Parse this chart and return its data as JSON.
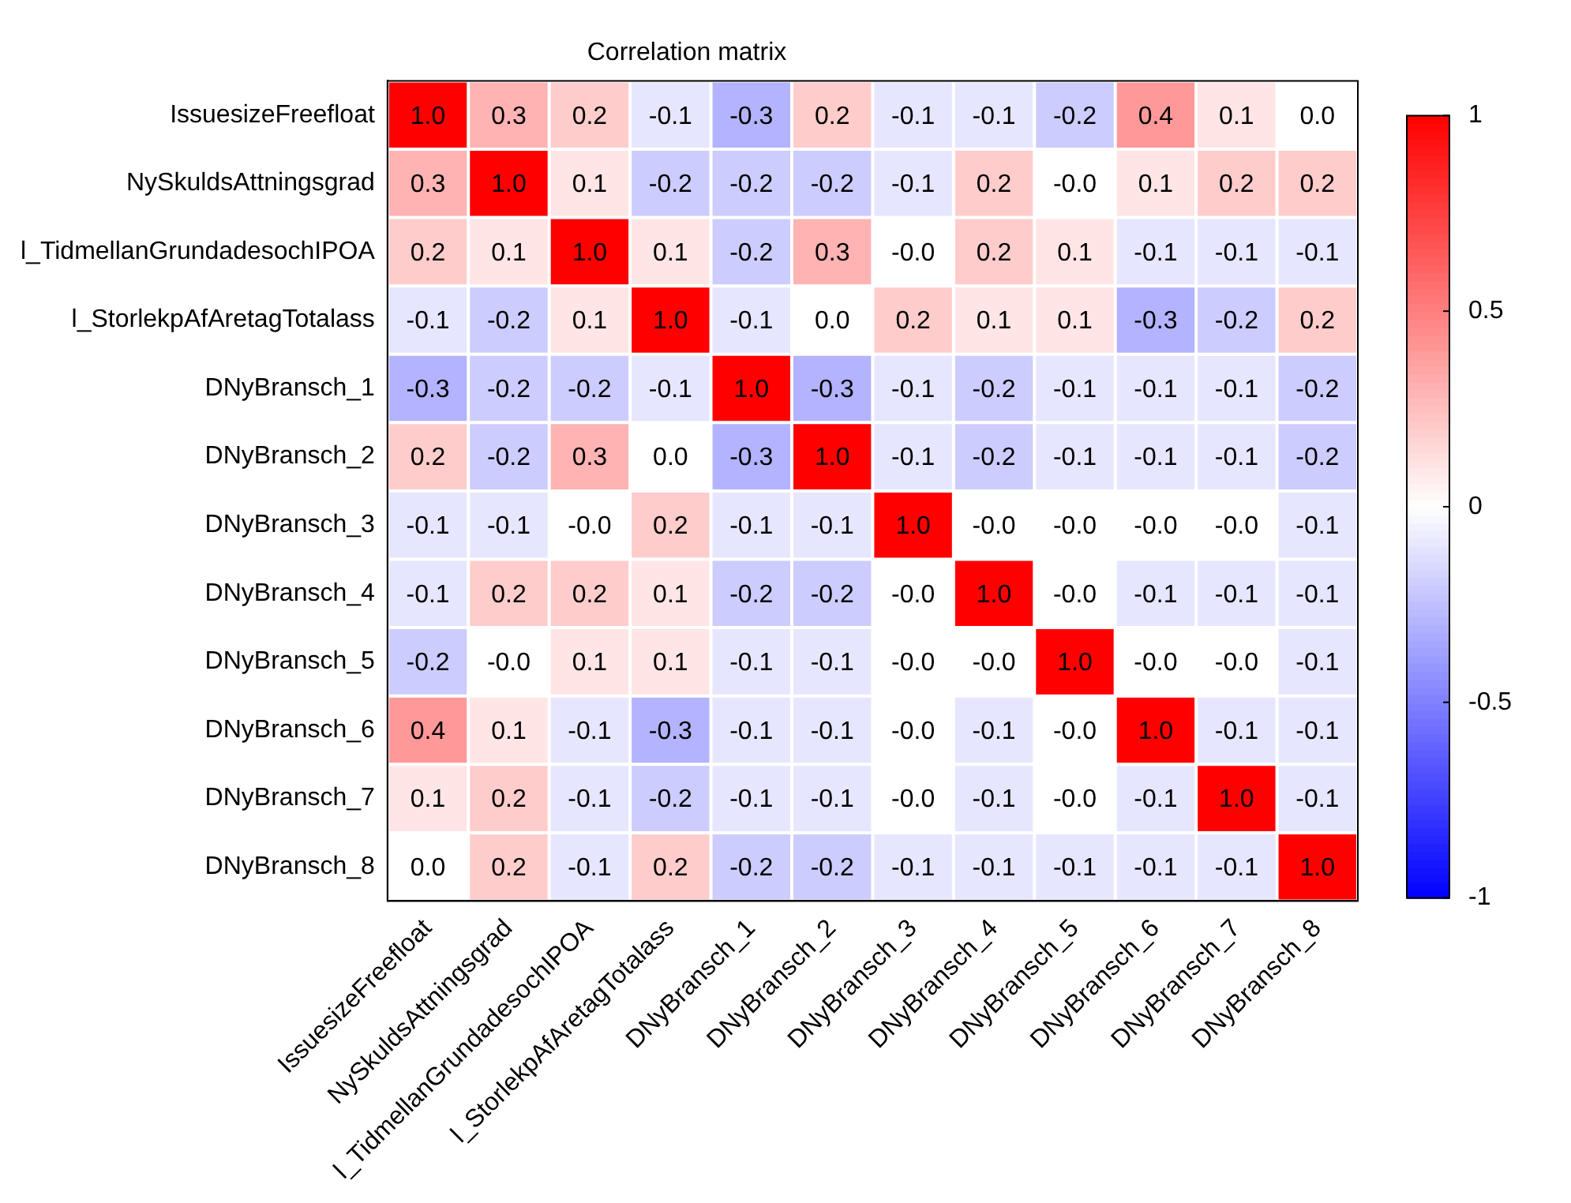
{
  "chart_data": {
    "type": "heatmap",
    "title": "Correlation matrix",
    "categories": [
      "IssuesizeFreefloat",
      "NySkuldsAttningsgrad",
      "l_TidmellanGrundadesochIPOA",
      "l_StorlekpAfAretagTotalass",
      "DNyBransch_1",
      "DNyBransch_2",
      "DNyBransch_3",
      "DNyBransch_4",
      "DNyBransch_5",
      "DNyBransch_6",
      "DNyBransch_7",
      "DNyBransch_8"
    ],
    "y_categories": [
      "IssuesizeFreefloat",
      "NySkuldsAttningsgrad",
      "l_TidmellanGrundadesochIPOA",
      "l_StorlekpAfAretagTotalass",
      "DNyBransch_1",
      "DNyBransch_2",
      "DNyBransch_3",
      "DNyBransch_4",
      "DNyBransch_5",
      "DNyBransch_6",
      "DNyBransch_7",
      "DNyBransch_8"
    ],
    "cells": [
      [
        1.0,
        0.3,
        0.2,
        -0.1,
        -0.3,
        0.2,
        -0.1,
        -0.1,
        -0.2,
        0.4,
        0.1,
        0.0
      ],
      [
        0.3,
        1.0,
        0.1,
        -0.2,
        -0.2,
        -0.2,
        -0.1,
        0.2,
        0.0,
        0.1,
        0.2,
        0.2
      ],
      [
        0.2,
        0.1,
        1.0,
        0.1,
        -0.2,
        0.3,
        0.0,
        0.2,
        0.1,
        -0.1,
        -0.1,
        -0.1
      ],
      [
        -0.1,
        -0.2,
        0.1,
        1.0,
        -0.1,
        0.0,
        0.2,
        0.1,
        0.1,
        -0.3,
        -0.2,
        0.2
      ],
      [
        -0.3,
        -0.2,
        -0.2,
        -0.1,
        1.0,
        -0.3,
        -0.1,
        -0.2,
        -0.1,
        -0.1,
        -0.1,
        -0.2
      ],
      [
        0.2,
        -0.2,
        0.3,
        0.0,
        -0.3,
        1.0,
        -0.1,
        -0.2,
        -0.1,
        -0.1,
        -0.1,
        -0.2
      ],
      [
        -0.1,
        -0.1,
        0.0,
        0.2,
        -0.1,
        -0.1,
        1.0,
        0.0,
        0.0,
        0.0,
        0.0,
        -0.1
      ],
      [
        -0.1,
        0.2,
        0.2,
        0.1,
        -0.2,
        -0.2,
        0.0,
        1.0,
        0.0,
        -0.1,
        -0.1,
        -0.1
      ],
      [
        -0.2,
        0.0,
        0.1,
        0.1,
        -0.1,
        -0.1,
        0.0,
        0.0,
        1.0,
        0.0,
        0.0,
        -0.1
      ],
      [
        0.4,
        0.1,
        -0.1,
        -0.3,
        -0.1,
        -0.1,
        0.0,
        -0.1,
        0.0,
        1.0,
        -0.1,
        -0.1
      ],
      [
        0.1,
        0.2,
        -0.1,
        -0.2,
        -0.1,
        -0.1,
        0.0,
        -0.1,
        0.0,
        -0.1,
        1.0,
        -0.1
      ],
      [
        0.0,
        0.2,
        -0.1,
        0.2,
        -0.2,
        -0.2,
        -0.1,
        -0.1,
        -0.1,
        -0.1,
        -0.1,
        1.0
      ]
    ],
    "cell_labels": [
      [
        "1.0",
        "0.3",
        "0.2",
        "-0.1",
        "-0.3",
        "0.2",
        "-0.1",
        "-0.1",
        "-0.2",
        "0.4",
        "0.1",
        "0.0"
      ],
      [
        "0.3",
        "1.0",
        "0.1",
        "-0.2",
        "-0.2",
        "-0.2",
        "-0.1",
        "0.2",
        "-0.0",
        "0.1",
        "0.2",
        "0.2"
      ],
      [
        "0.2",
        "0.1",
        "1.0",
        "0.1",
        "-0.2",
        "0.3",
        "-0.0",
        "0.2",
        "0.1",
        "-0.1",
        "-0.1",
        "-0.1"
      ],
      [
        "-0.1",
        "-0.2",
        "0.1",
        "1.0",
        "-0.1",
        "0.0",
        "0.2",
        "0.1",
        "0.1",
        "-0.3",
        "-0.2",
        "0.2"
      ],
      [
        "-0.3",
        "-0.2",
        "-0.2",
        "-0.1",
        "1.0",
        "-0.3",
        "-0.1",
        "-0.2",
        "-0.1",
        "-0.1",
        "-0.1",
        "-0.2"
      ],
      [
        "0.2",
        "-0.2",
        "0.3",
        "0.0",
        "-0.3",
        "1.0",
        "-0.1",
        "-0.2",
        "-0.1",
        "-0.1",
        "-0.1",
        "-0.2"
      ],
      [
        "-0.1",
        "-0.1",
        "-0.0",
        "0.2",
        "-0.1",
        "-0.1",
        "1.0",
        "-0.0",
        "-0.0",
        "-0.0",
        "-0.0",
        "-0.1"
      ],
      [
        "-0.1",
        "0.2",
        "0.2",
        "0.1",
        "-0.2",
        "-0.2",
        "-0.0",
        "1.0",
        "-0.0",
        "-0.1",
        "-0.1",
        "-0.1"
      ],
      [
        "-0.2",
        "-0.0",
        "0.1",
        "0.1",
        "-0.1",
        "-0.1",
        "-0.0",
        "-0.0",
        "1.0",
        "-0.0",
        "-0.0",
        "-0.1"
      ],
      [
        "0.4",
        "0.1",
        "-0.1",
        "-0.3",
        "-0.1",
        "-0.1",
        "-0.0",
        "-0.1",
        "-0.0",
        "1.0",
        "-0.1",
        "-0.1"
      ],
      [
        "0.1",
        "0.2",
        "-0.1",
        "-0.2",
        "-0.1",
        "-0.1",
        "-0.0",
        "-0.1",
        "-0.0",
        "-0.1",
        "1.0",
        "-0.1"
      ],
      [
        "0.0",
        "0.2",
        "-0.1",
        "0.2",
        "-0.2",
        "-0.2",
        "-0.1",
        "-0.1",
        "-0.1",
        "-0.1",
        "-0.1",
        "1.0"
      ]
    ],
    "clim": [
      -1,
      1
    ],
    "cticks": [
      -1,
      -0.5,
      0,
      0.5,
      1
    ]
  }
}
